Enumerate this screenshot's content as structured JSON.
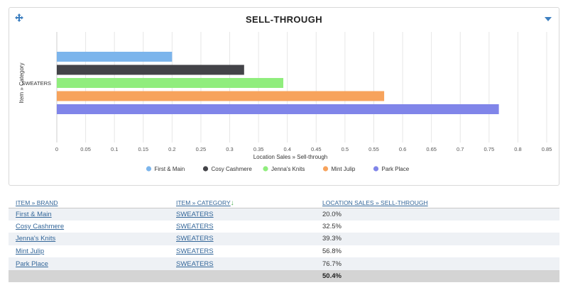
{
  "panel": {
    "title": "SELL-THROUGH",
    "move_icon": "move-icon",
    "menu_icon": "chevron-down-icon"
  },
  "chart_data": {
    "type": "bar",
    "orientation": "horizontal",
    "categories": [
      "SWEATERS"
    ],
    "series": [
      {
        "name": "First & Main",
        "values": [
          0.2
        ],
        "color": "#7cb5ec"
      },
      {
        "name": "Cosy Cashmere",
        "values": [
          0.325
        ],
        "color": "#434348"
      },
      {
        "name": "Jenna's Knits",
        "values": [
          0.393
        ],
        "color": "#90ed7d"
      },
      {
        "name": "Mint Julip",
        "values": [
          0.568
        ],
        "color": "#f7a35c"
      },
      {
        "name": "Park Place",
        "values": [
          0.767
        ],
        "color": "#8085e9"
      }
    ],
    "xlabel": "Location Sales » Sell-through",
    "ylabel": "Item » Category",
    "xlim": [
      0,
      0.85
    ],
    "xticks": [
      "0",
      "0.05",
      "0.1",
      "0.15",
      "0.2",
      "0.25",
      "0.3",
      "0.35",
      "0.4",
      "0.45",
      "0.5",
      "0.55",
      "0.6",
      "0.65",
      "0.7",
      "0.75",
      "0.8",
      "0.85"
    ],
    "grid": true,
    "legend": "bottom"
  },
  "table": {
    "headers": {
      "brand": "ITEM » BRAND",
      "category": "ITEM » CATEGORY",
      "value": "LOCATION SALES » SELL-THROUGH"
    },
    "rows": [
      {
        "brand": "First & Main",
        "category": "SWEATERS",
        "value": "20.0%"
      },
      {
        "brand": "Cosy Cashmere",
        "category": "SWEATERS",
        "value": "32.5%"
      },
      {
        "brand": "Jenna's Knits",
        "category": "SWEATERS",
        "value": "39.3%"
      },
      {
        "brand": "Mint Julip",
        "category": "SWEATERS",
        "value": "56.8%"
      },
      {
        "brand": "Park Place",
        "category": "SWEATERS",
        "value": "76.7%"
      }
    ],
    "total": {
      "value": "50.4%"
    }
  }
}
